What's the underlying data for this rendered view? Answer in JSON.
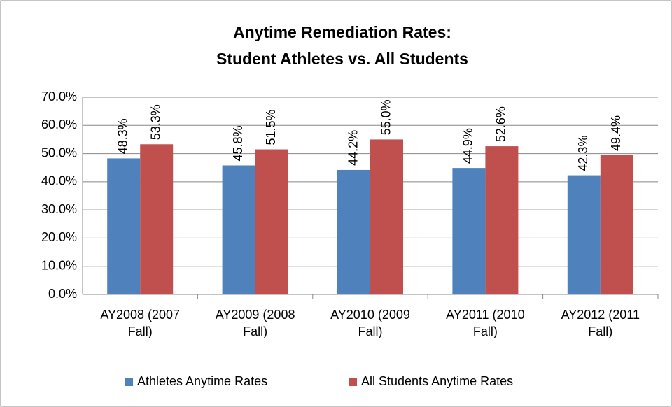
{
  "chart_data": {
    "type": "bar",
    "title": [
      "Anytime Remediation Rates:",
      "Student Athletes vs. All Students"
    ],
    "categories": [
      "AY2008 (2007 Fall)",
      "AY2009 (2008 Fall)",
      "AY2010 (2009 Fall)",
      "AY2011 (2010 Fall)",
      "AY2012 (2011 Fall)"
    ],
    "series": [
      {
        "name": "Athletes Anytime Rates",
        "color": "#4f81bd",
        "values": [
          48.3,
          45.8,
          44.2,
          44.9,
          42.3
        ],
        "value_labels": [
          "48.3%",
          "45.8%",
          "44.2%",
          "44.9%",
          "42.3%"
        ]
      },
      {
        "name": "All Students Anytime Rates",
        "color": "#c0504d",
        "values": [
          53.3,
          51.5,
          55.0,
          52.6,
          49.4
        ],
        "value_labels": [
          "53.3%",
          "51.5%",
          "55.0%",
          "52.6%",
          "49.4%"
        ]
      }
    ],
    "ylim": [
      0,
      70
    ],
    "yticks": [
      {
        "value": 0,
        "label": "0.0%"
      },
      {
        "value": 10,
        "label": "10.0%"
      },
      {
        "value": 20,
        "label": "20.0%"
      },
      {
        "value": 30,
        "label": "30.0%"
      },
      {
        "value": 40,
        "label": "40.0%"
      },
      {
        "value": 50,
        "label": "50.0%"
      },
      {
        "value": 60,
        "label": "60.0%"
      },
      {
        "value": 70,
        "label": "70.0%"
      }
    ],
    "grid": true,
    "legend": "bottom"
  }
}
